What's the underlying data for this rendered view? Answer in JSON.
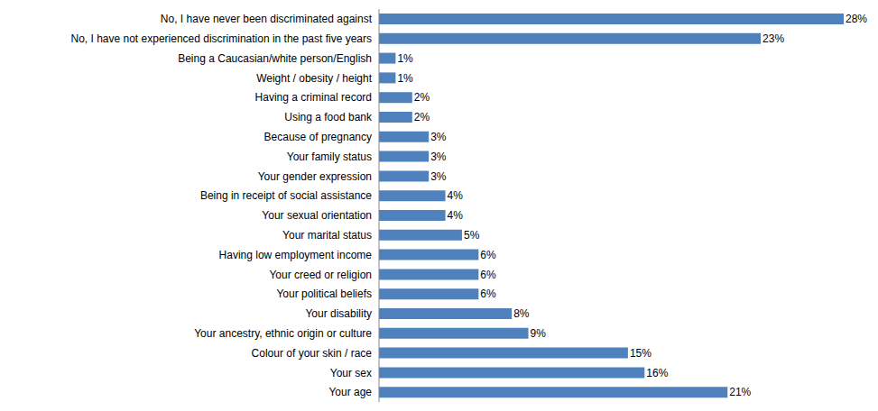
{
  "chart_data": {
    "type": "bar",
    "orientation": "horizontal",
    "categories": [
      "No, I have never been discriminated against",
      "No, I have not experienced discrimination in the past five years",
      "Being a Caucasian/white person/English",
      "Weight / obesity / height",
      "Having a criminal record",
      "Using a food bank",
      "Because of pregnancy",
      "Your family status",
      "Your gender expression",
      "Being in receipt of social assistance",
      "Your sexual orientation",
      "Your marital status",
      "Having low employment income",
      "Your creed or religion",
      "Your political beliefs",
      "Your disability",
      "Your ancestry, ethnic origin or culture",
      "Colour of your skin / race",
      "Your sex",
      "Your age"
    ],
    "values": [
      28,
      23,
      1,
      1,
      2,
      2,
      3,
      3,
      3,
      4,
      4,
      5,
      6,
      6,
      6,
      8,
      9,
      15,
      16,
      21
    ],
    "value_labels": [
      "28%",
      "23%",
      "1%",
      "1%",
      "2%",
      "2%",
      "3%",
      "3%",
      "3%",
      "4%",
      "4%",
      "5%",
      "6%",
      "6%",
      "6%",
      "8%",
      "9%",
      "15%",
      "16%",
      "21%"
    ],
    "color": "#4f81bd",
    "xlim": [
      0,
      28
    ],
    "data_labels": true,
    "tick_labels": "y",
    "grid": false
  }
}
